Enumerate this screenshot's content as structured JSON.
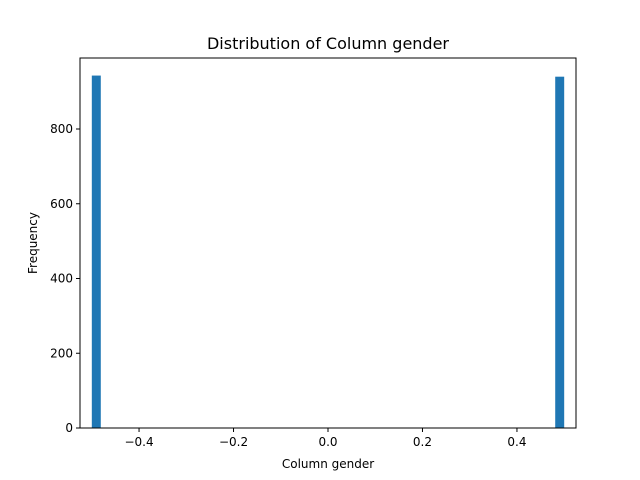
{
  "chart_data": {
    "type": "bar",
    "title": "Distribution of Column gender",
    "xlabel": "Column gender",
    "ylabel": "Frequency",
    "xlim": [
      -0.525,
      0.525
    ],
    "ylim": [
      0,
      990
    ],
    "xticks": [
      -0.4,
      -0.2,
      0.0,
      0.2,
      0.4
    ],
    "xtick_labels": [
      "−0.4",
      "−0.2",
      "0.0",
      "0.2",
      "0.4"
    ],
    "yticks": [
      0,
      200,
      400,
      600,
      800
    ],
    "ytick_labels": [
      "0",
      "200",
      "400",
      "600",
      "800"
    ],
    "bin_width": 0.019,
    "bars": [
      {
        "x_start": -0.5,
        "x_end": -0.481,
        "value": 943
      },
      {
        "x_start": 0.481,
        "x_end": 0.5,
        "value": 940
      }
    ],
    "bar_color": "#1f77b4",
    "grid": false
  }
}
